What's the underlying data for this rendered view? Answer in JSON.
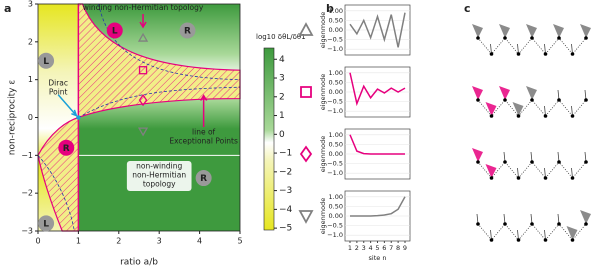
{
  "panel_labels": [
    "a",
    "b",
    "c"
  ],
  "chart_data": [
    {
      "type": "phase",
      "xlabel": "ratio a/b",
      "ylabel": "non-reciprocity ε",
      "xlim": [
        0,
        5
      ],
      "ylim": [
        -3,
        3
      ],
      "xticks": [
        0,
        1,
        2,
        3,
        4,
        5
      ],
      "yticks": [
        {
          "value": -3,
          "label": "−3"
        },
        {
          "value": -2,
          "label": "−2"
        },
        {
          "value": -1,
          "label": "−1"
        },
        0,
        1,
        2,
        3
      ],
      "colorbar": {
        "label": "log10 δθL/δθ1",
        "lim": [
          -5.1,
          4.6
        ],
        "ticks": [
          {
            "value": -5,
            "label": "−5"
          },
          {
            "value": -4,
            "label": "−4"
          },
          {
            "value": -3,
            "label": "−3"
          },
          {
            "value": -2,
            "label": "−2"
          },
          {
            "value": -1,
            "label": "−1"
          },
          0,
          1,
          2,
          3,
          4
        ],
        "colors": [
          "#e6e620",
          "#f4f4b8",
          "#ffffff",
          "#a8d898",
          "#3e9a3e"
        ]
      },
      "hatch_color": "#e6007e",
      "annotations": [
        {
          "lines": [
            "winding non-Hermitian topology"
          ],
          "color": "#e6007e"
        },
        {
          "lines": [
            "Dirac",
            "Point"
          ],
          "color": "#1aa0d8"
        },
        {
          "lines": [
            "line of",
            "Exceptional Points"
          ],
          "color": "#e6007e"
        },
        {
          "lines": [
            "non-winding",
            "non-Hermitian",
            "topology"
          ],
          "color": "#777777"
        }
      ],
      "markers": [
        {
          "text": "L",
          "color": "#999999"
        },
        {
          "text": "R",
          "color": "#999999"
        },
        {
          "text": "L",
          "color": "#e6007e"
        },
        {
          "text": "R",
          "color": "#e6007e"
        },
        {
          "text": "R",
          "color": "#999999"
        },
        {
          "text": "L",
          "color": "#999999"
        }
      ]
    },
    {
      "type": "line",
      "ylabel": "eigenmode",
      "x": [
        1,
        2,
        3,
        4,
        5,
        6,
        7,
        8,
        9
      ],
      "ylim": [
        -1.3,
        1.3
      ],
      "yticks": [
        {
          "value": -1,
          "label": "−1.0"
        },
        {
          "value": -0.5,
          "label": "−0.5"
        },
        {
          "value": 0,
          "label": "0.00"
        },
        {
          "value": 0.5,
          "label": "0.50"
        },
        {
          "value": 1,
          "label": "1.00"
        }
      ],
      "series": [
        {
          "color": "#808080",
          "values": [
            0.3,
            -0.2,
            0.5,
            -0.4,
            0.7,
            -0.5,
            0.8,
            -0.9,
            0.9
          ]
        }
      ]
    },
    {
      "type": "line",
      "ylabel": "eigenmode",
      "x": [
        1,
        2,
        3,
        4,
        5,
        6,
        7,
        8,
        9
      ],
      "ylim": [
        -1.3,
        1.3
      ],
      "yticks": [
        {
          "value": -1,
          "label": "−1.0"
        },
        {
          "value": -0.5,
          "label": "−0.5"
        },
        {
          "value": 0,
          "label": "0.00"
        },
        {
          "value": 0.5,
          "label": "0.50"
        },
        {
          "value": 1,
          "label": "1.00"
        }
      ],
      "series": [
        {
          "color": "#e6007e",
          "values": [
            1.0,
            -0.6,
            0.3,
            -0.3,
            0.15,
            -0.05,
            0.2,
            0.0,
            0.2
          ]
        }
      ]
    },
    {
      "type": "line",
      "ylabel": "eigenmode",
      "x": [
        1,
        2,
        3,
        4,
        5,
        6,
        7,
        8,
        9
      ],
      "ylim": [
        -1.3,
        1.3
      ],
      "yticks": [
        {
          "value": -1,
          "label": "−1.0"
        },
        {
          "value": -0.5,
          "label": "−0.5"
        },
        {
          "value": 0,
          "label": "0.00"
        },
        {
          "value": 0.5,
          "label": "0.50"
        },
        {
          "value": 1,
          "label": "1.00"
        }
      ],
      "series": [
        {
          "color": "#e6007e",
          "values": [
            1.0,
            0.15,
            0.02,
            0,
            0,
            0,
            0,
            0,
            0
          ]
        }
      ]
    },
    {
      "type": "line",
      "ylabel": "eigenmode",
      "xlabel": "site n",
      "x": [
        1,
        2,
        3,
        4,
        5,
        6,
        7,
        8,
        9
      ],
      "ylim": [
        -1.3,
        1.3
      ],
      "xticks": [
        1,
        2,
        3,
        4,
        5,
        6,
        7,
        8,
        9
      ],
      "yticks": [
        {
          "value": -1,
          "label": "−1.0"
        },
        {
          "value": -0.5,
          "label": "−0.5"
        },
        {
          "value": 0,
          "label": "0.00"
        },
        {
          "value": 0.5,
          "label": "0.50"
        },
        {
          "value": 1,
          "label": "1.00"
        }
      ],
      "series": [
        {
          "color": "#808080",
          "values": [
            0,
            0,
            0,
            0,
            0.02,
            0.05,
            0.12,
            0.35,
            1.0
          ]
        }
      ]
    }
  ]
}
